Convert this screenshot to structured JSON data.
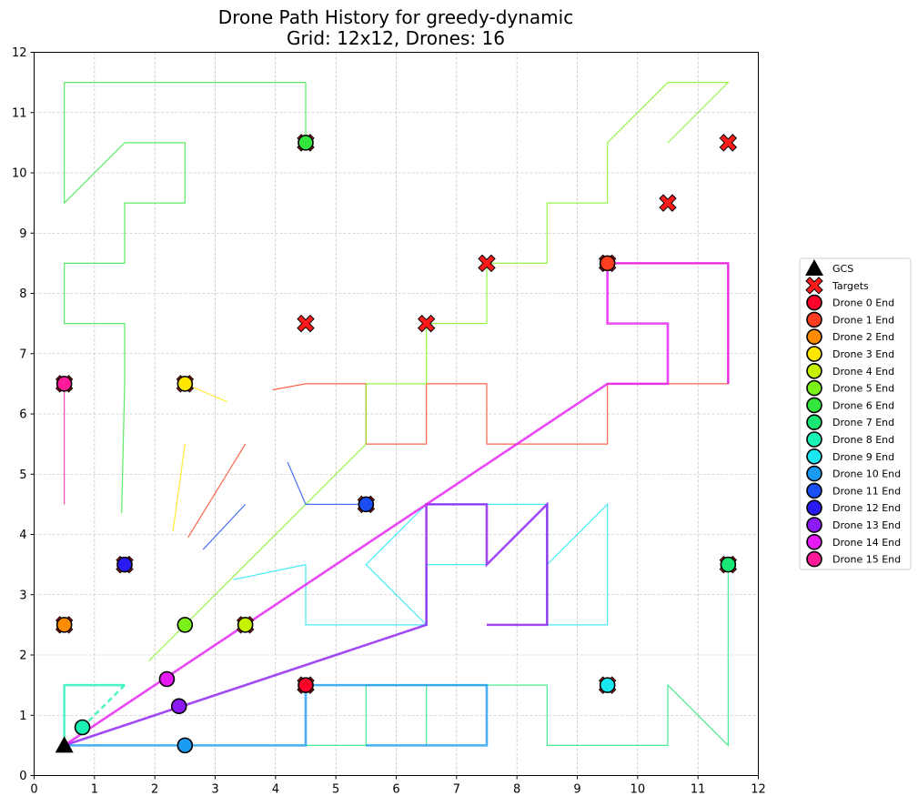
{
  "chart_data": {
    "type": "line",
    "title": "Drone Path History for greedy-dynamic",
    "subtitle": "Grid: 12x12, Drones: 16",
    "xlabel": "",
    "ylabel": "",
    "xlim": [
      0,
      12
    ],
    "ylim": [
      0,
      12
    ],
    "xticks": [
      "0",
      "1",
      "2",
      "3",
      "4",
      "5",
      "6",
      "7",
      "8",
      "9",
      "10",
      "11",
      "12"
    ],
    "yticks": [
      "0",
      "1",
      "2",
      "3",
      "4",
      "5",
      "6",
      "7",
      "8",
      "9",
      "10",
      "11",
      "12"
    ],
    "grid": true,
    "legend_position": "right",
    "gcs": {
      "label": "GCS",
      "x": 0.5,
      "y": 0.5,
      "color": "#000000"
    },
    "targets": {
      "label": "Targets",
      "color": "#ff1a1a",
      "points": [
        [
          11.5,
          10.5
        ],
        [
          10.5,
          9.5
        ],
        [
          7.5,
          8.5
        ],
        [
          4.5,
          7.5
        ],
        [
          6.5,
          7.5
        ],
        [
          9.5,
          8.5
        ],
        [
          4.5,
          10.5
        ],
        [
          0.5,
          6.5
        ],
        [
          2.5,
          6.5
        ],
        [
          1.5,
          3.5
        ],
        [
          0.5,
          2.5
        ],
        [
          3.5,
          2.5
        ],
        [
          5.5,
          4.5
        ],
        [
          4.5,
          1.5
        ],
        [
          9.5,
          1.5
        ],
        [
          11.5,
          3.5
        ]
      ]
    },
    "series": [
      {
        "name": "Drone 0 End",
        "color": "#ff0029",
        "width": 1.2,
        "path": [],
        "end": [
          4.5,
          1.5
        ]
      },
      {
        "name": "Drone 1 End",
        "color": "#ff3d1f",
        "width": 1.2,
        "path": [
          [
            2.55,
            3.95
          ],
          [
            3.5,
            5.5
          ]
        ],
        "end": [
          9.5,
          8.5
        ],
        "path2": [
          [
            3.95,
            6.4
          ],
          [
            4.5,
            6.5
          ],
          [
            5.5,
            6.5
          ],
          [
            5.5,
            5.5
          ],
          [
            6.5,
            5.5
          ],
          [
            6.5,
            6.5
          ],
          [
            7.5,
            6.5
          ],
          [
            7.5,
            5.5
          ],
          [
            9.5,
            5.5
          ],
          [
            9.5,
            6.5
          ],
          [
            11.5,
            6.5
          ],
          [
            11.5,
            8.5
          ],
          [
            9.5,
            8.5
          ]
        ]
      },
      {
        "name": "Drone 2 End",
        "color": "#ff8c00",
        "width": 1.2,
        "path": [],
        "end": [
          0.5,
          2.5
        ]
      },
      {
        "name": "Drone 3 End",
        "color": "#ffe600",
        "width": 1.2,
        "path": [
          [
            2.3,
            4.05
          ],
          [
            2.5,
            5.5
          ]
        ],
        "end": [
          2.5,
          6.5
        ],
        "path2": [
          [
            2.5,
            6.5
          ],
          [
            3.2,
            6.2
          ]
        ]
      },
      {
        "name": "Drone 4 End",
        "color": "#c6f200",
        "width": 1.2,
        "path": [],
        "end": [
          3.5,
          2.5
        ]
      },
      {
        "name": "Drone 5 End",
        "color": "#7af21a",
        "width": 1.2,
        "path": [
          [
            1.9,
            1.9
          ],
          [
            5.5,
            5.5
          ],
          [
            5.5,
            6.5
          ],
          [
            6.5,
            6.5
          ],
          [
            6.5,
            7.5
          ],
          [
            7.5,
            7.5
          ],
          [
            7.5,
            8.5
          ],
          [
            8.5,
            8.5
          ],
          [
            8.5,
            9.5
          ],
          [
            9.5,
            9.5
          ],
          [
            9.5,
            10.5
          ],
          [
            10.5,
            11.5
          ],
          [
            11.5,
            11.5
          ],
          [
            10.5,
            10.5
          ]
        ],
        "end": [
          2.5,
          2.5
        ]
      },
      {
        "name": "Drone 6 End",
        "color": "#33e63d",
        "width": 1.2,
        "path": [
          [
            1.45,
            4.35
          ],
          [
            1.5,
            6.5
          ],
          [
            1.5,
            7.5
          ],
          [
            0.5,
            7.5
          ],
          [
            0.5,
            8.5
          ],
          [
            1.5,
            8.5
          ],
          [
            1.5,
            9.5
          ],
          [
            2.5,
            9.5
          ],
          [
            2.5,
            10.5
          ],
          [
            1.5,
            10.5
          ],
          [
            0.5,
            9.5
          ],
          [
            0.5,
            11.5
          ],
          [
            4.5,
            11.5
          ],
          [
            4.5,
            10.5
          ]
        ],
        "end": [
          4.5,
          10.5
        ]
      },
      {
        "name": "Drone 7 End",
        "color": "#1ae673",
        "width": 1.2,
        "path": [
          [
            4.5,
            0.5
          ],
          [
            5.5,
            0.5
          ],
          [
            5.5,
            1.5
          ],
          [
            6.5,
            1.5
          ],
          [
            6.5,
            0.5
          ],
          [
            6.5,
            1.5
          ],
          [
            8.5,
            1.5
          ],
          [
            8.5,
            0.5
          ],
          [
            10.5,
            0.5
          ],
          [
            10.5,
            1.5
          ],
          [
            11.5,
            0.5
          ],
          [
            11.5,
            3.5
          ]
        ],
        "end": [
          11.5,
          3.5
        ]
      },
      {
        "name": "Drone 8 End",
        "color": "#1af2b4",
        "width": 2.4,
        "path": [
          [
            0.5,
            0.5
          ],
          [
            0.5,
            1.5
          ],
          [
            1.5,
            1.5
          ]
        ],
        "path2": [
          [
            1.5,
            1.5
          ],
          [
            0.8,
            0.8
          ]
        ],
        "end": [
          0.8,
          0.8
        ]
      },
      {
        "name": "Drone 9 End",
        "color": "#1ae6f2",
        "width": 1.2,
        "path": [
          [
            3.3,
            3.25
          ],
          [
            4.5,
            3.5
          ],
          [
            4.5,
            2.5
          ],
          [
            6.5,
            2.5
          ],
          [
            5.5,
            3.5
          ],
          [
            6.5,
            4.5
          ],
          [
            8.5,
            4.5
          ],
          [
            8.5,
            2.5
          ],
          [
            9.5,
            2.5
          ],
          [
            9.5,
            4.5
          ],
          [
            8.5,
            3.5
          ]
        ],
        "path2": [
          [
            6.5,
            2.5
          ],
          [
            6.5,
            3.5
          ],
          [
            7.5,
            3.5
          ]
        ],
        "end": [
          9.5,
          1.5
        ]
      },
      {
        "name": "Drone 10 End",
        "color": "#1a9af2",
        "width": 2.6,
        "path": [
          [
            0.5,
            0.5
          ],
          [
            4.5,
            0.5
          ],
          [
            4.5,
            1.5
          ],
          [
            7.5,
            1.5
          ],
          [
            7.5,
            0.5
          ],
          [
            5.5,
            0.5
          ]
        ],
        "end": [
          2.5,
          0.5
        ]
      },
      {
        "name": "Drone 11 End",
        "color": "#1a4df2",
        "width": 1.2,
        "path": [
          [
            2.8,
            3.75
          ],
          [
            3.5,
            4.5
          ]
        ],
        "path2": [
          [
            4.2,
            5.2
          ],
          [
            4.5,
            4.5
          ],
          [
            5.5,
            4.5
          ]
        ],
        "end": [
          5.5,
          4.5
        ]
      },
      {
        "name": "Drone 12 End",
        "color": "#2a1af2",
        "width": 1.2,
        "path": [],
        "end": [
          1.5,
          3.5
        ]
      },
      {
        "name": "Drone 13 End",
        "color": "#8c1af2",
        "width": 2.6,
        "path": [
          [
            0.5,
            0.5
          ],
          [
            6.5,
            2.5
          ],
          [
            6.5,
            4.5
          ],
          [
            7.5,
            4.5
          ],
          [
            7.5,
            3.5
          ],
          [
            8.5,
            4.5
          ],
          [
            8.5,
            2.5
          ],
          [
            7.5,
            2.5
          ]
        ],
        "end": [
          2.4,
          1.15
        ]
      },
      {
        "name": "Drone 14 End",
        "color": "#e61af2",
        "width": 2.6,
        "path": [
          [
            0.5,
            0.5
          ],
          [
            9.5,
            6.5
          ],
          [
            10.5,
            6.5
          ],
          [
            10.5,
            7.5
          ],
          [
            9.5,
            7.5
          ],
          [
            9.5,
            8.5
          ],
          [
            11.5,
            8.5
          ],
          [
            11.5,
            6.5
          ]
        ],
        "end": [
          2.2,
          1.6
        ]
      },
      {
        "name": "Drone 15 End",
        "color": "#ff1a9a",
        "width": 1.2,
        "path": [
          [
            0.5,
            4.5
          ],
          [
            0.5,
            6.5
          ]
        ],
        "end": [
          0.5,
          6.5
        ]
      }
    ]
  }
}
